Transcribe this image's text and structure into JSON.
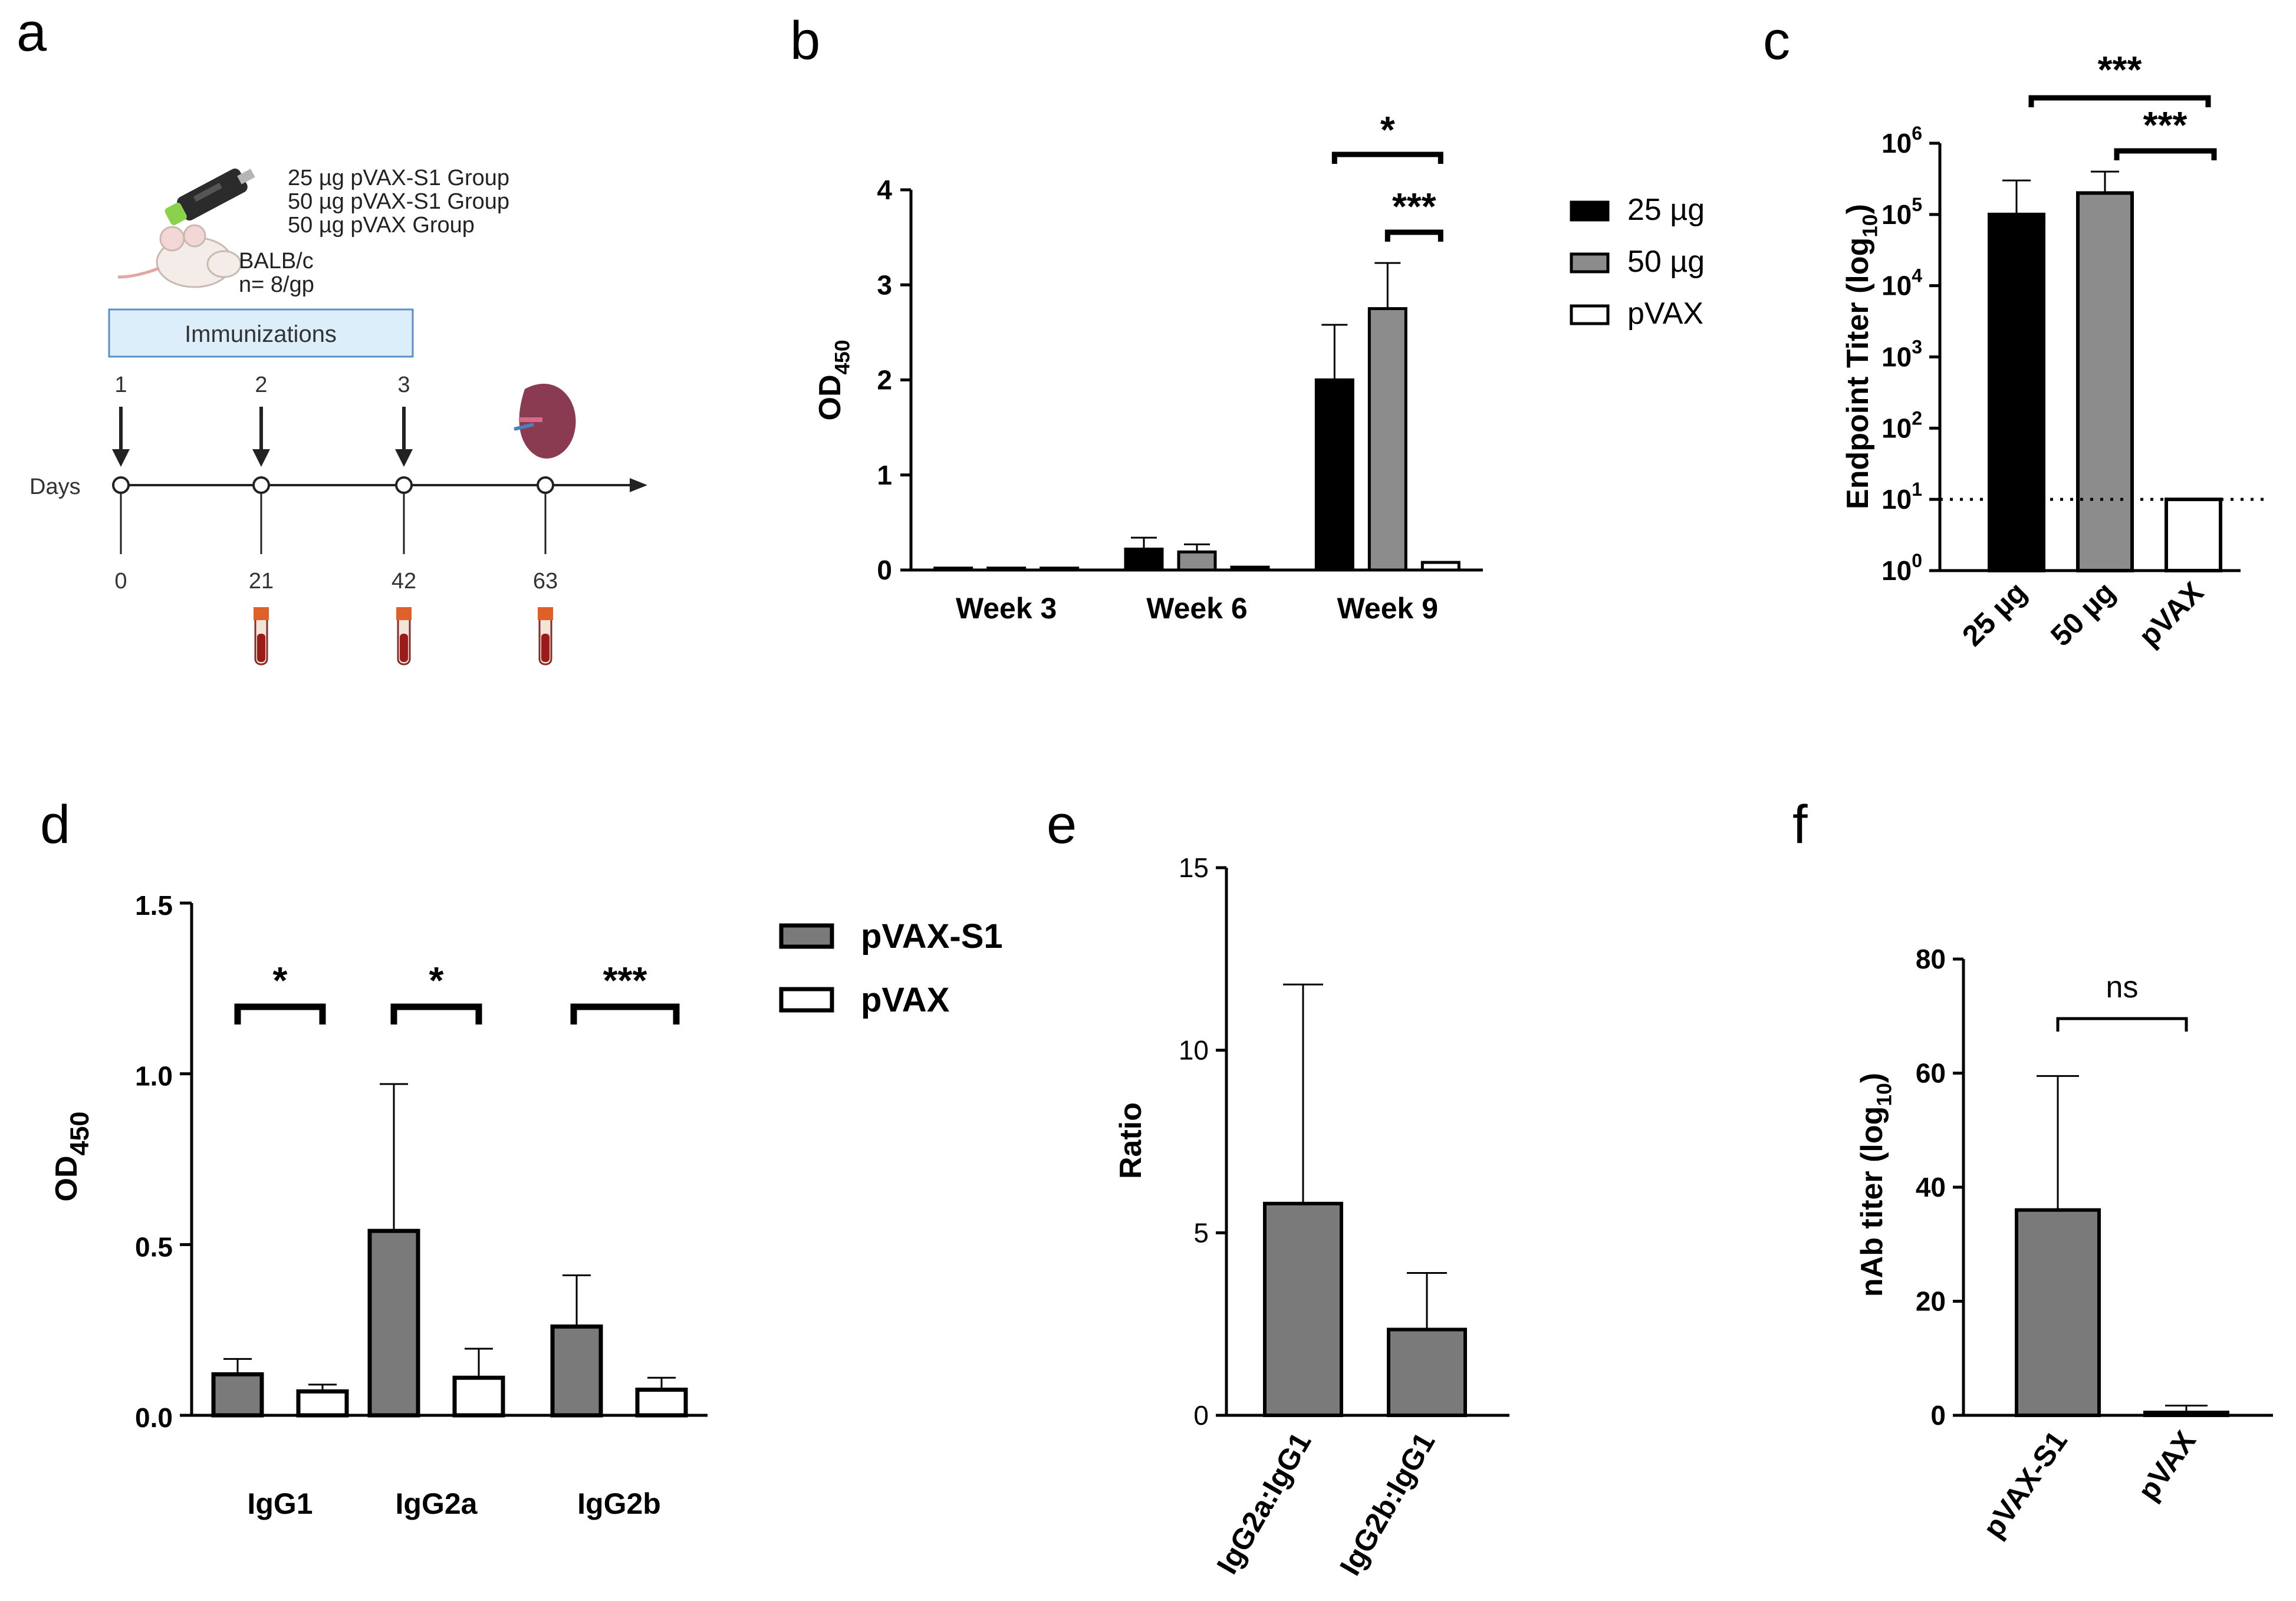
{
  "panels": {
    "a": "a",
    "b": "b",
    "c": "c",
    "d": "d",
    "e": "e",
    "f": "f"
  },
  "colors": {
    "dark": "#000000",
    "gray": "#8c8c8c",
    "gray_d": "#7a7a7a",
    "white": "#ffffff",
    "box": "#dceefa",
    "box_border": "#5b8fc7"
  },
  "timeline": {
    "groups": [
      "25 µg pVAX-S1 Group",
      "50 µg pVAX-S1 Group",
      "50 µg pVAX Group"
    ],
    "mouse_label": "BALB/c",
    "n_label": "n= 8/gp",
    "box_label": "Immunizations",
    "axis_label": "Days",
    "doses": [
      "1",
      "2",
      "3"
    ],
    "days": [
      "0",
      "21",
      "42",
      "63"
    ],
    "icons": [
      "mouse-icon",
      "syringe-icon",
      "spleen-icon",
      "blood-tube-icon"
    ]
  },
  "chart_data": [
    {
      "id": "b",
      "type": "bar",
      "ylabel": "OD",
      "ylabel_sub": "450",
      "ylim": [
        0,
        4
      ],
      "yticks": [
        "0",
        "1",
        "2",
        "3",
        "4"
      ],
      "categories": [
        "Week 3",
        "Week 6",
        "Week 9"
      ],
      "series": [
        {
          "name": "25 µg",
          "color": "#000000",
          "values": [
            0.02,
            0.22,
            2.0
          ],
          "errors": [
            0.0,
            0.12,
            0.58
          ]
        },
        {
          "name": "50 µg",
          "color": "#8c8c8c",
          "values": [
            0.02,
            0.19,
            2.75
          ],
          "errors": [
            0.0,
            0.08,
            0.48
          ]
        },
        {
          "name": "pVAX",
          "color": "#ffffff",
          "values": [
            0.02,
            0.03,
            0.08
          ],
          "errors": [
            0.0,
            0.0,
            0.0
          ]
        }
      ],
      "legend": [
        "25 µg",
        "50 µg",
        "pVAX"
      ],
      "significance": [
        "*",
        "***"
      ]
    },
    {
      "id": "c",
      "type": "bar",
      "yscale": "log",
      "ylabel": "Endpoint Titer (log",
      "ylabel_sub": "10",
      "ylabel_end": ")",
      "ylim_exp": [
        0,
        6
      ],
      "yticks": [
        "0",
        "1",
        "2",
        "3",
        "4",
        "5",
        "6"
      ],
      "ytick_base": "10",
      "categories": [
        "25 µg",
        "50 µg",
        "pVAX"
      ],
      "values": [
        100000,
        200000,
        10
      ],
      "errors_upper": [
        300000,
        400000,
        10
      ],
      "colors": [
        "#000000",
        "#8c8c8c",
        "#ffffff"
      ],
      "cutoff": 10,
      "significance": [
        "***",
        "***"
      ]
    },
    {
      "id": "d",
      "type": "bar",
      "ylabel": "OD",
      "ylabel_sub": "450",
      "ylim": [
        0,
        1.5
      ],
      "yticks": [
        "0.0",
        "0.5",
        "1.0",
        "1.5"
      ],
      "categories": [
        "IgG1",
        "IgG2a",
        "IgG2b"
      ],
      "series": [
        {
          "name": "pVAX-S1",
          "color": "#7a7a7a",
          "values": [
            0.12,
            0.54,
            0.26
          ],
          "errors": [
            0.045,
            0.43,
            0.15
          ]
        },
        {
          "name": "pVAX",
          "color": "#ffffff",
          "values": [
            0.07,
            0.11,
            0.075
          ],
          "errors": [
            0.02,
            0.085,
            0.035
          ]
        }
      ],
      "legend": [
        "pVAX-S1",
        "pVAX"
      ],
      "significance": [
        "*",
        "*",
        "***"
      ]
    },
    {
      "id": "e",
      "type": "bar",
      "ylabel": "Ratio",
      "ylim": [
        0,
        15
      ],
      "yticks": [
        "0",
        "5",
        "10",
        "15"
      ],
      "categories": [
        "IgG2a:IgG1",
        "IgG2b:IgG1"
      ],
      "values": [
        5.8,
        2.35
      ],
      "errors": [
        6.0,
        1.55
      ],
      "color": "#7a7a7a"
    },
    {
      "id": "f",
      "type": "bar",
      "ylabel": "nAb titer (log",
      "ylabel_sub": "10",
      "ylabel_end": ")",
      "ylim": [
        0,
        80
      ],
      "yticks": [
        "0",
        "20",
        "40",
        "60",
        "80"
      ],
      "categories": [
        "pVAX-S1",
        "pVAX"
      ],
      "values": [
        36,
        0.5
      ],
      "errors": [
        23.5,
        1.2
      ],
      "colors": [
        "#7a7a7a",
        "#ffffff"
      ],
      "significance": [
        "ns"
      ]
    }
  ]
}
